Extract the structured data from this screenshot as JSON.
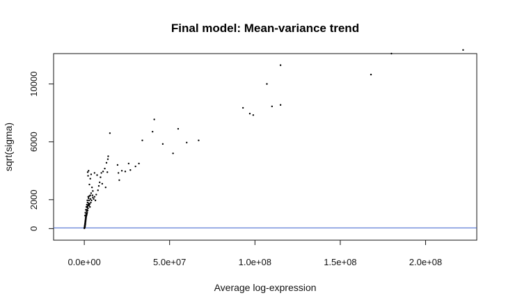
{
  "chart_data": {
    "type": "scatter",
    "title": "Final model: Mean-variance trend",
    "xlabel": "Average log-expression",
    "ylabel": "sqrt(sigma)",
    "xlim": [
      -18000000,
      230000000
    ],
    "ylim": [
      -800,
      12100
    ],
    "x_ticks": [
      0,
      50000000,
      100000000,
      150000000,
      200000000
    ],
    "x_tick_labels": [
      "0.0e+00",
      "5.0e+07",
      "1.0e+08",
      "1.5e+08",
      "2.0e+08"
    ],
    "y_ticks": [
      0,
      2000,
      6000,
      10000
    ],
    "y_tick_labels": [
      "0",
      "2000",
      "6000",
      "10000"
    ],
    "point_color": "#000000",
    "hline": {
      "y": 50,
      "color": "#3a5fcd"
    },
    "grid": false,
    "legend": "none",
    "series": [
      {
        "points": [
          [
            222000000,
            12350
          ],
          [
            180000000,
            12100
          ],
          [
            168000000,
            10650
          ],
          [
            115000000,
            11300
          ],
          [
            107000000,
            10000
          ],
          [
            115000000,
            8550
          ],
          [
            110000000,
            8450
          ],
          [
            93000000,
            8350
          ],
          [
            97000000,
            7950
          ],
          [
            99000000,
            7850
          ],
          [
            67000000,
            6100
          ],
          [
            60000000,
            5950
          ],
          [
            55000000,
            6900
          ],
          [
            52000000,
            5200
          ],
          [
            46000000,
            5850
          ],
          [
            41000000,
            7550
          ],
          [
            40000000,
            6700
          ],
          [
            34000000,
            6100
          ],
          [
            32000000,
            4500
          ],
          [
            30000000,
            4300
          ],
          [
            27000000,
            4050
          ],
          [
            26000000,
            4500
          ],
          [
            24000000,
            3950
          ],
          [
            22000000,
            4000
          ],
          [
            20000000,
            3850
          ],
          [
            19500000,
            4400
          ],
          [
            20500000,
            3350
          ],
          [
            15000000,
            6600
          ],
          [
            14000000,
            5000
          ],
          [
            13800000,
            4800
          ],
          [
            13000000,
            4550
          ],
          [
            13500000,
            3900
          ],
          [
            12000000,
            4150
          ],
          [
            11000000,
            3950
          ],
          [
            10000000,
            3850
          ],
          [
            9500000,
            3550
          ],
          [
            9000000,
            3200
          ],
          [
            8500000,
            2950
          ],
          [
            8000000,
            2650
          ],
          [
            7000000,
            2350
          ],
          [
            6000000,
            2200
          ],
          [
            5500000,
            2050
          ],
          [
            10500000,
            3100
          ],
          [
            12500000,
            2850
          ],
          [
            7500000,
            3700
          ],
          [
            6000000,
            3850
          ],
          [
            4000000,
            3750
          ],
          [
            3500000,
            3450
          ],
          [
            2500000,
            4000
          ],
          [
            2000000,
            3900
          ],
          [
            2200000,
            3650
          ],
          [
            3000000,
            3050
          ],
          [
            4500000,
            2850
          ],
          [
            5000000,
            2600
          ],
          [
            4000000,
            2450
          ],
          [
            3500000,
            2300
          ],
          [
            5000000,
            2150
          ],
          [
            3000000,
            2250
          ],
          [
            6500000,
            1950
          ],
          [
            4200000,
            1950
          ],
          [
            3800000,
            1800
          ],
          [
            2800000,
            1950
          ],
          [
            3200000,
            1700
          ],
          [
            2400000,
            1650
          ],
          [
            2800000,
            1600
          ],
          [
            2000000,
            1550
          ],
          [
            1800000,
            1450
          ],
          [
            2200000,
            1400
          ],
          [
            1600000,
            1300
          ],
          [
            2000000,
            1250
          ],
          [
            1400000,
            1200
          ],
          [
            1700000,
            1100
          ],
          [
            1200000,
            1050
          ],
          [
            1500000,
            1000
          ],
          [
            1000000,
            950
          ],
          [
            1300000,
            900
          ],
          [
            900000,
            850
          ],
          [
            1100000,
            800
          ],
          [
            800000,
            750
          ],
          [
            1000000,
            700
          ],
          [
            700000,
            650
          ],
          [
            900000,
            600
          ],
          [
            600000,
            550
          ],
          [
            800000,
            500
          ],
          [
            500000,
            450
          ],
          [
            700000,
            400
          ],
          [
            400000,
            350
          ],
          [
            600000,
            300
          ],
          [
            300000,
            250
          ],
          [
            500000,
            220
          ],
          [
            250000,
            180
          ],
          [
            400000,
            150
          ],
          [
            200000,
            120
          ],
          [
            300000,
            100
          ],
          [
            150000,
            80
          ],
          [
            100000,
            60
          ],
          [
            80000,
            40
          ],
          [
            50000,
            20
          ],
          [
            2600000,
            1750
          ],
          [
            3300000,
            1500
          ],
          [
            1900000,
            1800
          ],
          [
            1200000,
            1500
          ],
          [
            900000,
            1300
          ],
          [
            1500000,
            1650
          ],
          [
            2500000,
            2100
          ],
          [
            600000,
            1100
          ],
          [
            400000,
            900
          ],
          [
            1800000,
            1950
          ],
          [
            4800000,
            2300
          ],
          [
            3600000,
            2050
          ],
          [
            2300000,
            2200
          ]
        ]
      }
    ]
  }
}
